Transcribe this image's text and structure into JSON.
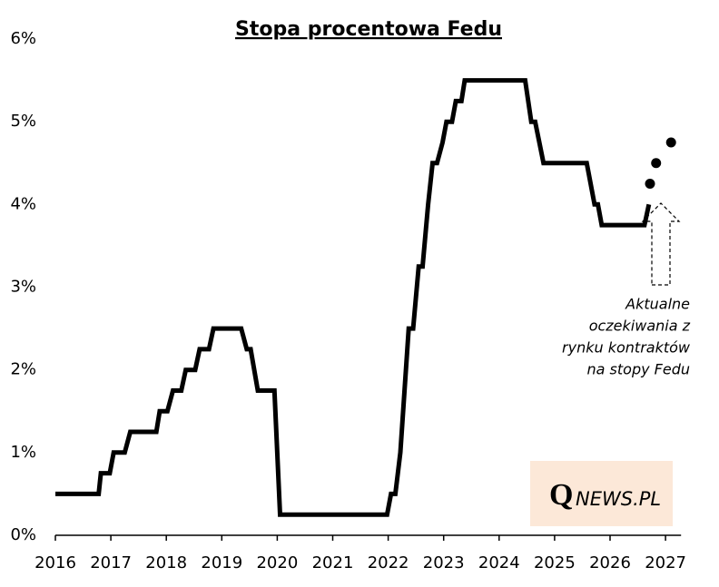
{
  "chart_data": {
    "type": "line",
    "title": "Stopa procentowa Fedu",
    "series": [
      {
        "color": "#000000",
        "style": "line",
        "x": [
          2016.0,
          2016.78,
          2016.82,
          2016.98,
          2017.05,
          2017.25,
          2017.35,
          2017.82,
          2017.88,
          2018.02,
          2018.12,
          2018.27,
          2018.35,
          2018.52,
          2018.6,
          2018.77,
          2018.85,
          2019.35,
          2019.45,
          2019.52,
          2019.65,
          2019.95,
          2020.05,
          2021.98,
          2022.05,
          2022.13,
          2022.22,
          2022.37,
          2022.45,
          2022.55,
          2022.62,
          2022.72,
          2022.8,
          2022.88,
          2022.98,
          2023.05,
          2023.15,
          2023.22,
          2023.32,
          2023.38,
          2024.47,
          2024.58,
          2024.65,
          2024.8,
          2025.58,
          2025.72,
          2025.78,
          2025.85,
          2026.62,
          2026.7
        ],
        "values": [
          0.5,
          0.5,
          0.75,
          0.75,
          1.0,
          1.0,
          1.25,
          1.25,
          1.5,
          1.5,
          1.75,
          1.75,
          2.0,
          2.0,
          2.25,
          2.25,
          2.5,
          2.5,
          2.25,
          2.25,
          1.75,
          1.75,
          0.25,
          0.25,
          0.5,
          0.5,
          1.0,
          2.5,
          2.5,
          3.25,
          3.25,
          4.0,
          4.5,
          4.5,
          4.75,
          5.0,
          5.0,
          5.25,
          5.25,
          5.5,
          5.5,
          5.0,
          5.0,
          4.5,
          4.5,
          4.0,
          4.0,
          3.75,
          3.75,
          4.0
        ]
      },
      {
        "color": "#000000",
        "style": "markers",
        "x": [
          2026.72,
          2026.83,
          2027.1
        ],
        "values": [
          4.25,
          4.5,
          4.75
        ]
      }
    ],
    "xlim": [
      2016,
      2027.28
    ],
    "xticks": [
      2016,
      2017,
      2018,
      2019,
      2020,
      2021,
      2022,
      2023,
      2024,
      2025,
      2026,
      2027
    ],
    "ylim": [
      0,
      6
    ],
    "yticks": [
      {
        "value": 0,
        "label": "0%"
      },
      {
        "value": 1,
        "label": "1%"
      },
      {
        "value": 2,
        "label": "2%"
      },
      {
        "value": 3,
        "label": "3%"
      },
      {
        "value": 4,
        "label": "4%"
      },
      {
        "value": 5,
        "label": "5%"
      },
      {
        "value": 6,
        "label": "6%"
      }
    ],
    "annotation": [
      "Aktualne",
      "oczekiwania z",
      "rynku kontraktów",
      "na stopy Fedu"
    ],
    "logo": [
      "Q",
      "NEWS.PL"
    ]
  }
}
